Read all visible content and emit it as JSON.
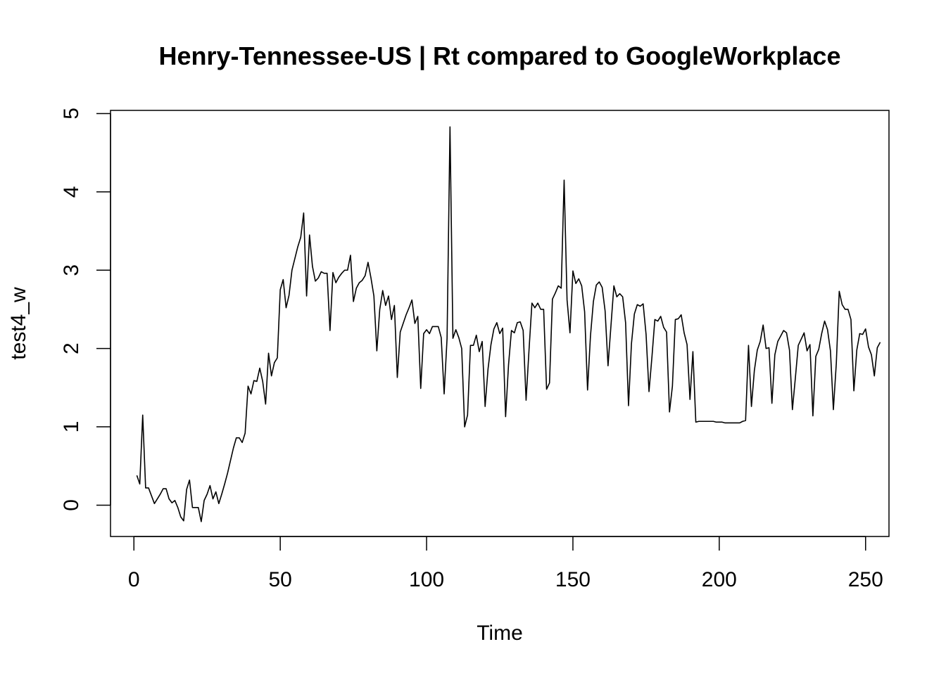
{
  "chart_data": {
    "type": "line",
    "title": "Henry-Tennessee-US | Rt compared to GoogleWorkplace",
    "xlabel": "Time",
    "ylabel": "test4_w",
    "xlim": [
      -8,
      258
    ],
    "ylim": [
      -0.4,
      5.04
    ],
    "xticks": [
      0,
      50,
      100,
      150,
      200,
      250
    ],
    "yticks": [
      0,
      1,
      2,
      3,
      4,
      5
    ],
    "xtick_labels": [
      "0",
      "50",
      "100",
      "150",
      "200",
      "250"
    ],
    "ytick_labels": [
      "0",
      "1",
      "2",
      "3",
      "4",
      "5"
    ],
    "grid": false,
    "legend": "none",
    "line_color": "#000000",
    "x_start": 1,
    "values": [
      0.38,
      0.27,
      1.15,
      0.22,
      0.22,
      0.12,
      0.02,
      0.08,
      0.14,
      0.21,
      0.21,
      0.08,
      0.03,
      0.06,
      -0.03,
      -0.15,
      -0.2,
      0.2,
      0.32,
      -0.03,
      -0.03,
      -0.03,
      -0.21,
      0.06,
      0.14,
      0.25,
      0.08,
      0.17,
      0.02,
      0.14,
      0.27,
      0.41,
      0.57,
      0.73,
      0.86,
      0.86,
      0.8,
      0.92,
      1.52,
      1.42,
      1.59,
      1.58,
      1.75,
      1.58,
      1.29,
      1.94,
      1.65,
      1.82,
      1.88,
      2.75,
      2.88,
      2.52,
      2.68,
      3.0,
      3.15,
      3.3,
      3.42,
      3.73,
      2.67,
      3.45,
      3.05,
      2.86,
      2.9,
      2.98,
      2.96,
      2.96,
      2.23,
      2.97,
      2.84,
      2.91,
      2.96,
      3.0,
      3.0,
      3.19,
      2.6,
      2.77,
      2.84,
      2.87,
      2.93,
      3.1,
      2.9,
      2.67,
      1.97,
      2.5,
      2.74,
      2.55,
      2.67,
      2.37,
      2.55,
      1.63,
      2.21,
      2.32,
      2.43,
      2.52,
      2.62,
      2.32,
      2.41,
      1.49,
      2.19,
      2.24,
      2.19,
      2.28,
      2.28,
      2.28,
      2.14,
      1.42,
      2.13,
      4.83,
      2.13,
      2.24,
      2.14,
      2.0,
      1.0,
      1.15,
      2.04,
      2.04,
      2.17,
      1.96,
      2.09,
      1.26,
      1.74,
      2.05,
      2.25,
      2.33,
      2.19,
      2.26,
      1.13,
      1.79,
      2.23,
      2.2,
      2.33,
      2.34,
      2.23,
      1.34,
      1.98,
      2.58,
      2.52,
      2.58,
      2.5,
      2.5,
      1.48,
      1.56,
      2.63,
      2.71,
      2.8,
      2.77,
      4.15,
      2.62,
      2.2,
      2.99,
      2.83,
      2.89,
      2.8,
      2.47,
      1.47,
      2.16,
      2.6,
      2.81,
      2.85,
      2.78,
      2.48,
      1.78,
      2.29,
      2.8,
      2.66,
      2.7,
      2.66,
      2.33,
      1.27,
      2.06,
      2.44,
      2.56,
      2.54,
      2.57,
      2.18,
      1.45,
      1.89,
      2.37,
      2.35,
      2.41,
      2.27,
      2.21,
      1.19,
      1.52,
      2.37,
      2.38,
      2.43,
      2.2,
      2.05,
      1.35,
      1.96,
      1.06,
      1.07,
      1.07,
      1.07,
      1.07,
      1.07,
      1.07,
      1.06,
      1.06,
      1.06,
      1.05,
      1.05,
      1.05,
      1.05,
      1.05,
      1.05,
      1.07,
      1.08,
      2.04,
      1.26,
      1.72,
      1.98,
      2.09,
      2.3,
      2.0,
      2.01,
      1.3,
      1.92,
      2.09,
      2.16,
      2.23,
      2.2,
      1.98,
      1.22,
      1.62,
      2.04,
      2.12,
      2.2,
      1.97,
      2.05,
      1.14,
      1.9,
      1.99,
      2.19,
      2.35,
      2.24,
      1.97,
      1.22,
      1.81,
      2.73,
      2.56,
      2.5,
      2.5,
      2.37,
      1.46,
      1.98,
      2.19,
      2.18,
      2.25,
      2.02,
      1.92,
      1.65,
      2.01,
      2.08
    ]
  }
}
